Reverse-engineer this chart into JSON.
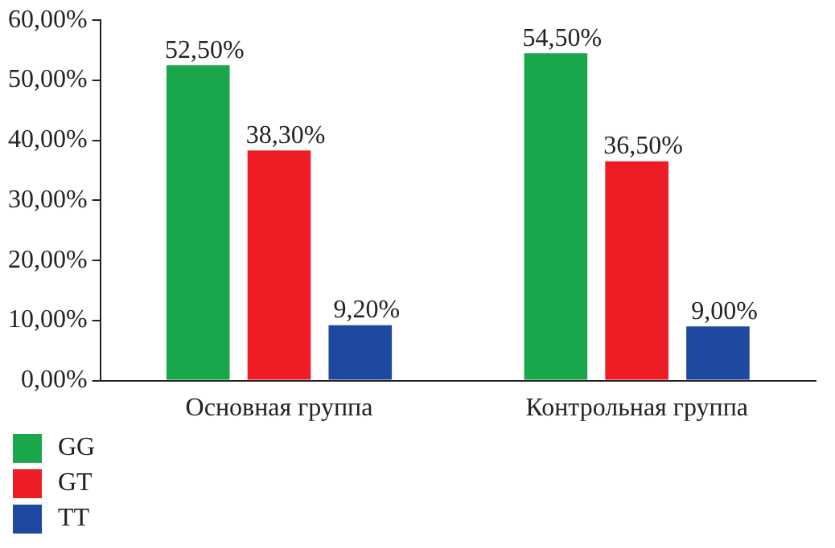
{
  "chart_data": {
    "type": "bar",
    "categories": [
      "Основная группа",
      "Контрольная группа"
    ],
    "series": [
      {
        "name": "GG",
        "color": "#1aa64a",
        "values": [
          52.5,
          54.5
        ],
        "value_labels": [
          "52,50%",
          "54,50%"
        ]
      },
      {
        "name": "GT",
        "color": "#ee1c25",
        "values": [
          38.3,
          36.5
        ],
        "value_labels": [
          "38,30%",
          "36,50%"
        ]
      },
      {
        "name": "TT",
        "color": "#1f48a0",
        "values": [
          9.2,
          9.0
        ],
        "value_labels": [
          "9,20%",
          "9,00%"
        ]
      }
    ],
    "ylim": [
      0,
      60
    ],
    "yticks": [
      {
        "value": 0,
        "label": "0,00%"
      },
      {
        "value": 10,
        "label": "10,00%"
      },
      {
        "value": 20,
        "label": "20,00%"
      },
      {
        "value": 30,
        "label": "30,00%"
      },
      {
        "value": 40,
        "label": "40,00%"
      },
      {
        "value": 50,
        "label": "50,00%"
      },
      {
        "value": 60,
        "label": "60,00%"
      }
    ],
    "grid": false,
    "legend": "bottom left"
  }
}
